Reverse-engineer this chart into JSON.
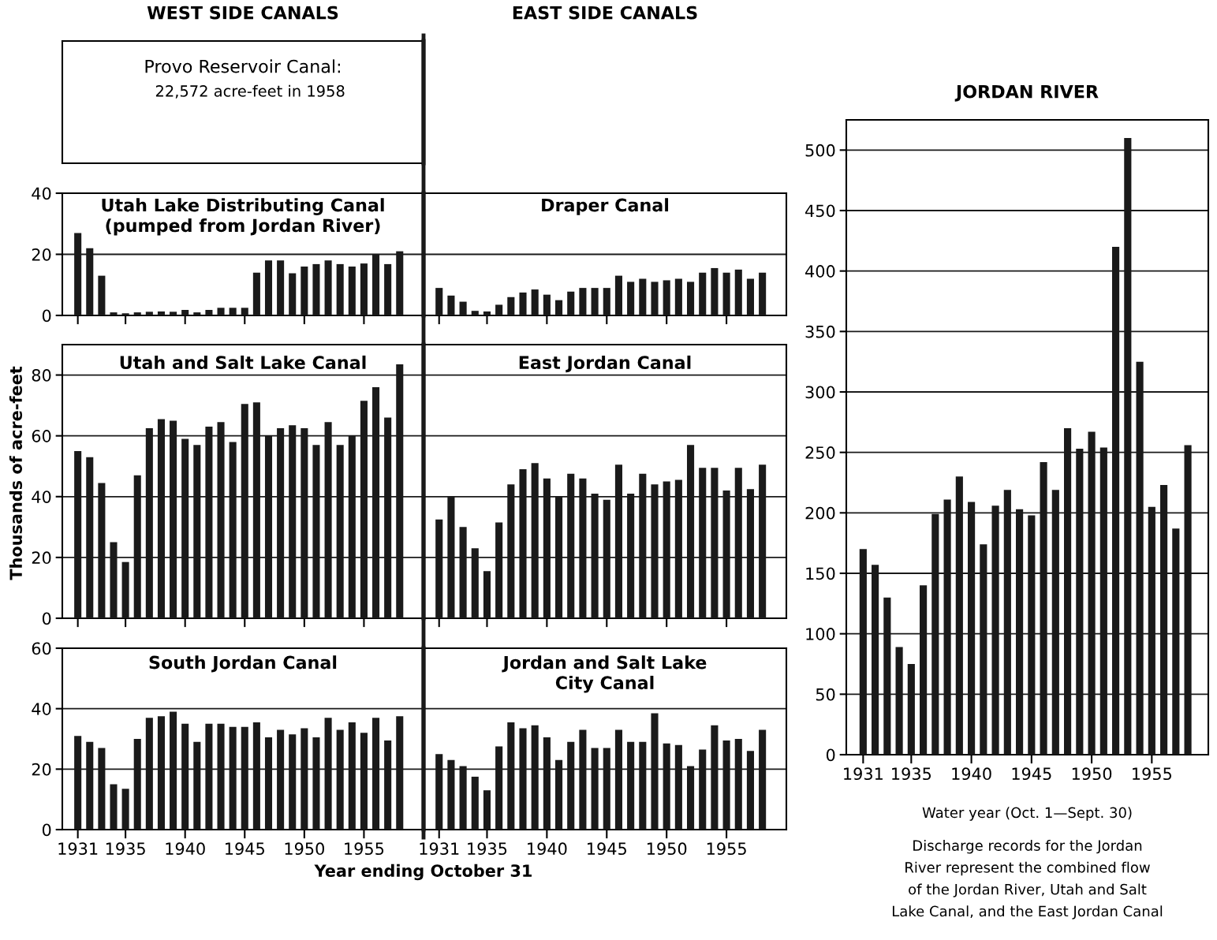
{
  "chart_data": [
    {
      "type": "other",
      "title": "WEST SIDE CANALS",
      "annotations": [
        "Provo Reservoir Canal:",
        "22,572 acre-feet in 1958"
      ]
    },
    {
      "type": "bar",
      "title": "Utah Lake Distributing Canal\n(pumped from Jordan River)",
      "x": [
        1931,
        1932,
        1933,
        1934,
        1935,
        1936,
        1937,
        1938,
        1939,
        1940,
        1941,
        1942,
        1943,
        1944,
        1945,
        1946,
        1947,
        1948,
        1949,
        1950,
        1951,
        1952,
        1953,
        1954,
        1955,
        1956,
        1957,
        1958
      ],
      "values": [
        27,
        22,
        13,
        1,
        0.7,
        1,
        1.2,
        1.3,
        1.2,
        1.8,
        1,
        1.8,
        2.5,
        2.5,
        2.5,
        14,
        18,
        18,
        13.8,
        16,
        16.8,
        18,
        16.8,
        16,
        17,
        20,
        16.8,
        21
      ],
      "color": "#1a1a1a",
      "xlim": [
        1929.7,
        1960
      ],
      "xticks": [
        {
          "value": 1931,
          "label": null
        },
        {
          "value": 1935,
          "label": null
        },
        {
          "value": 1940,
          "label": null
        },
        {
          "value": 1945,
          "label": null
        },
        {
          "value": 1950,
          "label": null
        },
        {
          "value": 1955,
          "label": null
        }
      ],
      "ylim": [
        0,
        40
      ],
      "yticks": [
        0,
        20,
        40
      ],
      "grid": "y",
      "tick_labels": "y"
    },
    {
      "type": "bar",
      "title": "Draper Canal",
      "annotations": [
        "EAST SIDE CANALS"
      ],
      "x": [
        1931,
        1932,
        1933,
        1934,
        1935,
        1936,
        1937,
        1938,
        1939,
        1940,
        1941,
        1942,
        1943,
        1944,
        1945,
        1946,
        1947,
        1948,
        1949,
        1950,
        1951,
        1952,
        1953,
        1954,
        1955,
        1956,
        1957,
        1958
      ],
      "values": [
        9,
        6.5,
        4.5,
        1.5,
        1.3,
        3.5,
        6,
        7.5,
        8.5,
        6.8,
        5,
        7.8,
        9,
        9,
        9,
        13,
        11,
        12,
        11,
        11.5,
        12,
        11,
        14,
        15.5,
        14,
        15,
        12,
        14
      ],
      "color": "#1a1a1a",
      "xlim": [
        1929.7,
        1960
      ],
      "xticks": [
        {
          "value": 1931,
          "label": null
        },
        {
          "value": 1935,
          "label": null
        },
        {
          "value": 1940,
          "label": null
        },
        {
          "value": 1945,
          "label": null
        },
        {
          "value": 1950,
          "label": null
        },
        {
          "value": 1955,
          "label": null
        }
      ],
      "ylim": [
        0,
        40
      ],
      "yticks": [
        0,
        20,
        40
      ],
      "grid": "y",
      "tick_labels": false
    },
    {
      "type": "bar",
      "title": "Utah and Salt Lake Canal",
      "ylabel": "Thousands of acre-feet",
      "x": [
        1931,
        1932,
        1933,
        1934,
        1935,
        1936,
        1937,
        1938,
        1939,
        1940,
        1941,
        1942,
        1943,
        1944,
        1945,
        1946,
        1947,
        1948,
        1949,
        1950,
        1951,
        1952,
        1953,
        1954,
        1955,
        1956,
        1957,
        1958
      ],
      "values": [
        55,
        53,
        44.5,
        25,
        18.5,
        47,
        62.5,
        65.5,
        65,
        59,
        57,
        63,
        64.5,
        58,
        70.5,
        71,
        60,
        62.5,
        63.5,
        62.5,
        57,
        64.5,
        57,
        60,
        71.5,
        76,
        66,
        83.5
      ],
      "color": "#1a1a1a",
      "xlim": [
        1929.7,
        1960
      ],
      "xticks": [
        {
          "value": 1931,
          "label": null
        },
        {
          "value": 1935,
          "label": null
        },
        {
          "value": 1940,
          "label": null
        },
        {
          "value": 1945,
          "label": null
        },
        {
          "value": 1950,
          "label": null
        },
        {
          "value": 1955,
          "label": null
        }
      ],
      "ylim": [
        0,
        90
      ],
      "yticks": [
        0,
        20,
        40,
        60,
        80
      ],
      "grid": "y",
      "tick_labels": "y"
    },
    {
      "type": "bar",
      "title": "East Jordan Canal",
      "x": [
        1931,
        1932,
        1933,
        1934,
        1935,
        1936,
        1937,
        1938,
        1939,
        1940,
        1941,
        1942,
        1943,
        1944,
        1945,
        1946,
        1947,
        1948,
        1949,
        1950,
        1951,
        1952,
        1953,
        1954,
        1955,
        1956,
        1957,
        1958
      ],
      "values": [
        32.5,
        40,
        30,
        23,
        15.5,
        31.5,
        44,
        49,
        51,
        46,
        40,
        47.5,
        46,
        41,
        39,
        50.5,
        41,
        47.5,
        44,
        45,
        45.5,
        57,
        49.5,
        49.5,
        42,
        49.5,
        42.5,
        50.5
      ],
      "color": "#1a1a1a",
      "xlim": [
        1929.7,
        1960
      ],
      "xticks": [
        {
          "value": 1931,
          "label": null
        },
        {
          "value": 1935,
          "label": null
        },
        {
          "value": 1940,
          "label": null
        },
        {
          "value": 1945,
          "label": null
        },
        {
          "value": 1950,
          "label": null
        },
        {
          "value": 1955,
          "label": null
        }
      ],
      "ylim": [
        0,
        90
      ],
      "yticks": [
        0,
        20,
        40,
        60,
        80
      ],
      "grid": "y",
      "tick_labels": false
    },
    {
      "type": "bar",
      "title": "South Jordan Canal",
      "xlabel": "Year ending October 31",
      "x": [
        1931,
        1932,
        1933,
        1934,
        1935,
        1936,
        1937,
        1938,
        1939,
        1940,
        1941,
        1942,
        1943,
        1944,
        1945,
        1946,
        1947,
        1948,
        1949,
        1950,
        1951,
        1952,
        1953,
        1954,
        1955,
        1956,
        1957,
        1958
      ],
      "values": [
        31,
        29,
        27,
        15,
        13.5,
        30,
        37,
        37.5,
        39,
        35,
        29,
        35,
        35,
        34,
        34,
        35.5,
        30.5,
        33,
        31.5,
        33.5,
        30.5,
        37,
        33,
        35.5,
        32,
        37,
        29.5,
        37.5
      ],
      "color": "#1a1a1a",
      "xlim": [
        1929.7,
        1960
      ],
      "xticks": [
        1931,
        1935,
        1940,
        1945,
        1950,
        1955
      ],
      "ylim": [
        0,
        60
      ],
      "yticks": [
        0,
        20,
        40,
        60
      ],
      "grid": "y"
    },
    {
      "type": "bar",
      "title": "Jordan and Salt Lake\nCity Canal",
      "x": [
        1931,
        1932,
        1933,
        1934,
        1935,
        1936,
        1937,
        1938,
        1939,
        1940,
        1941,
        1942,
        1943,
        1944,
        1945,
        1946,
        1947,
        1948,
        1949,
        1950,
        1951,
        1952,
        1953,
        1954,
        1955,
        1956,
        1957,
        1958
      ],
      "values": [
        25,
        23,
        21,
        17.5,
        13,
        27.5,
        35.5,
        33.5,
        34.5,
        30.5,
        23,
        29,
        33,
        27,
        27,
        33,
        29,
        29,
        38.5,
        28.5,
        28,
        21,
        26.5,
        34.5,
        29.5,
        30,
        26,
        33
      ],
      "color": "#1a1a1a",
      "xlim": [
        1929.7,
        1960
      ],
      "xticks": [
        1931,
        1935,
        1940,
        1945,
        1950,
        1955
      ],
      "ylim": [
        0,
        60
      ],
      "yticks": [
        0,
        20,
        40,
        60
      ],
      "grid": "y",
      "tick_labels": "x"
    },
    {
      "type": "bar",
      "title": "JORDAN RIVER",
      "xlabel": "Water year (Oct. 1—Sept. 30)",
      "annotations": [
        "Discharge records for the Jordan\nRiver represent the combined flow\nof the Jordan River, Utah and Salt\nLake Canal, and the East Jordan Canal"
      ],
      "x": [
        1931,
        1932,
        1933,
        1934,
        1935,
        1936,
        1937,
        1938,
        1939,
        1940,
        1941,
        1942,
        1943,
        1944,
        1945,
        1946,
        1947,
        1948,
        1949,
        1950,
        1951,
        1952,
        1953,
        1954,
        1955,
        1956,
        1957,
        1958
      ],
      "values": [
        170,
        157,
        130,
        89,
        75,
        140,
        199,
        211,
        230,
        209,
        174,
        206,
        219,
        203,
        198,
        242,
        219,
        270,
        253,
        267,
        254,
        420,
        510,
        325,
        205,
        223,
        187,
        256
      ],
      "color": "#1a1a1a",
      "xlim": [
        1929.6,
        1959.7
      ],
      "xticks": [
        1931,
        1935,
        1940,
        1945,
        1950,
        1955
      ],
      "ylim": [
        0,
        525
      ],
      "yticks": [
        0,
        50,
        100,
        150,
        200,
        250,
        300,
        350,
        400,
        450,
        500
      ],
      "grid": "y"
    }
  ]
}
